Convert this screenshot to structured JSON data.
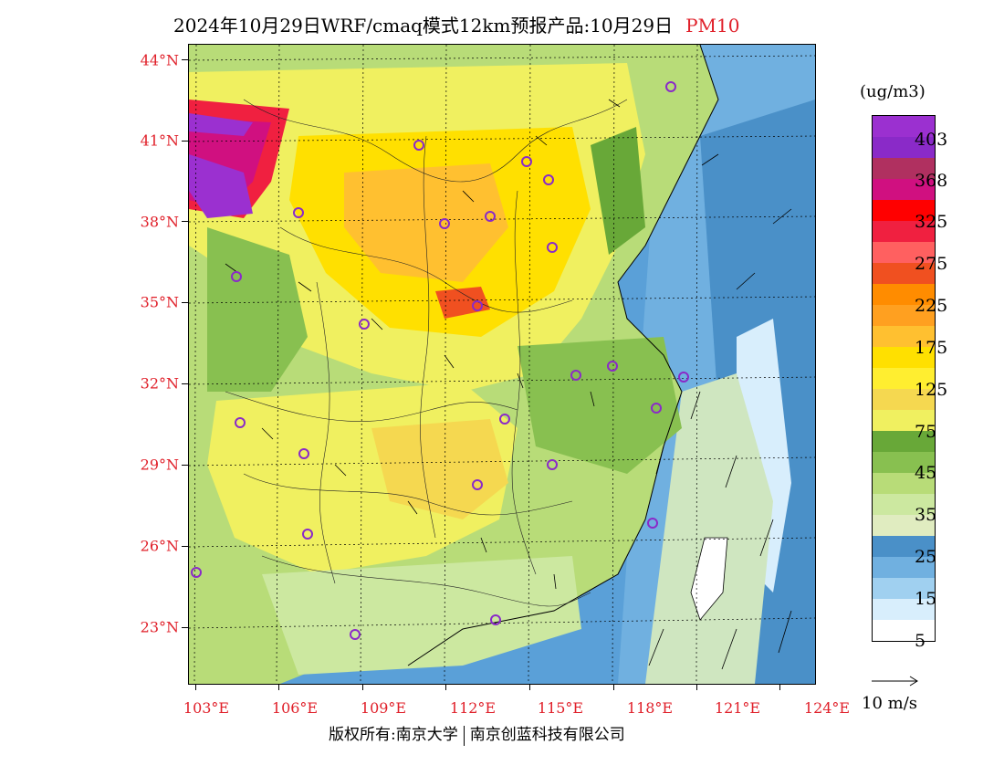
{
  "title": {
    "main": "2024年10月29日WRF/cmaq模式12km预报产品:10月29日",
    "pollutant": "PM10"
  },
  "map": {
    "lat_labels": [
      "44°N",
      "41°N",
      "38°N",
      "35°N",
      "32°N",
      "29°N",
      "26°N",
      "23°N"
    ],
    "lon_labels": [
      "103°E",
      "106°E",
      "109°E",
      "112°E",
      "115°E",
      "118°E",
      "121°E",
      "124°E"
    ]
  },
  "legend": {
    "unit": "(ug/m3)",
    "colors": [
      "#9b30d0",
      "#8a2ac8",
      "#b03060",
      "#d01080",
      "#ff0000",
      "#f02040",
      "#ff6060",
      "#f05020",
      "#ff8c00",
      "#ffa020",
      "#ffc030",
      "#ffe000",
      "#ffee30",
      "#f5d850",
      "#f0f060",
      "#68a838",
      "#88c050",
      "#b8dc78",
      "#cce8a0",
      "#e0ecc0",
      "#4a90c8",
      "#70b0e0",
      "#a0d0f0",
      "#d8eefc",
      "#ffffff"
    ],
    "labels": [
      "403",
      "368",
      "325",
      "275",
      "225",
      "175",
      "125",
      "75",
      "45",
      "35",
      "25",
      "15",
      "5"
    ]
  },
  "vector_key": {
    "label": "10 m/s"
  },
  "footer": {
    "copyright": "版权所有:南京大学",
    "company": "南京创蓝科技有限公司"
  }
}
